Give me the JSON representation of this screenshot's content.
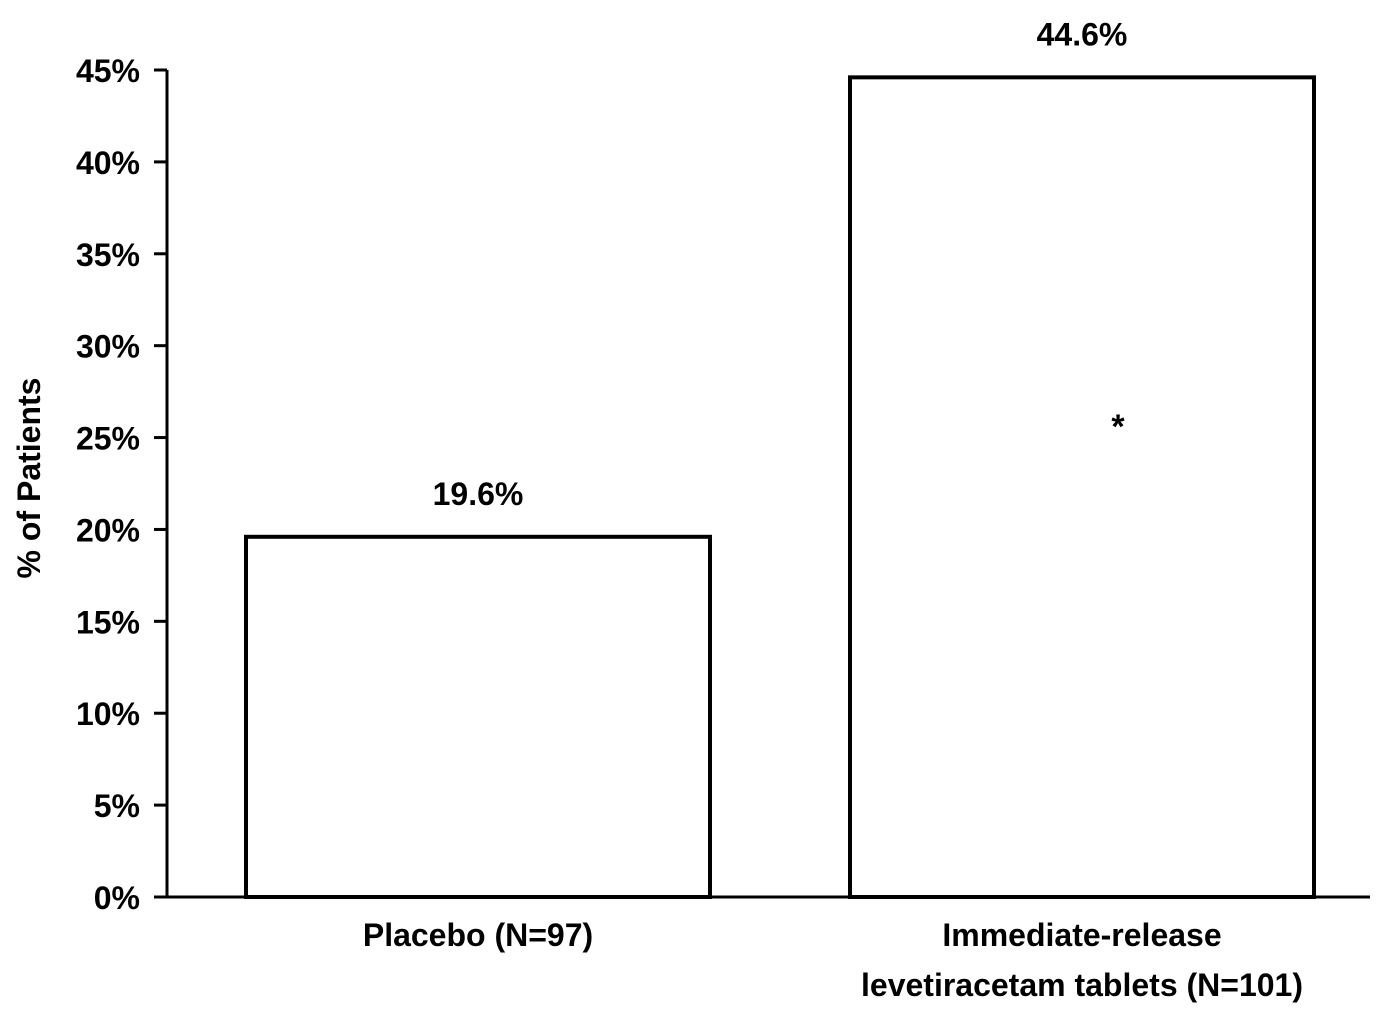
{
  "chart_data": {
    "type": "bar",
    "title": "",
    "xlabel": "",
    "ylabel": "% of Patients",
    "ylim": [
      0,
      45
    ],
    "yticks": [
      0,
      5,
      10,
      15,
      20,
      25,
      30,
      35,
      40,
      45
    ],
    "ytick_suffix": "%",
    "categories": [
      [
        "Placebo (N=97)"
      ],
      [
        "Immediate-release",
        "levetiracetam tablets (N=101)"
      ]
    ],
    "values": [
      19.6,
      44.6
    ],
    "data_labels": [
      "19.6%",
      "44.6%"
    ],
    "annotations": [
      {
        "category_index": 1,
        "text": "*"
      }
    ],
    "grid": false,
    "legend": "none",
    "colors": {
      "bar_fill": "#ffffff",
      "bar_stroke": "#000000",
      "axis": "#000000",
      "text": "#000000"
    }
  }
}
